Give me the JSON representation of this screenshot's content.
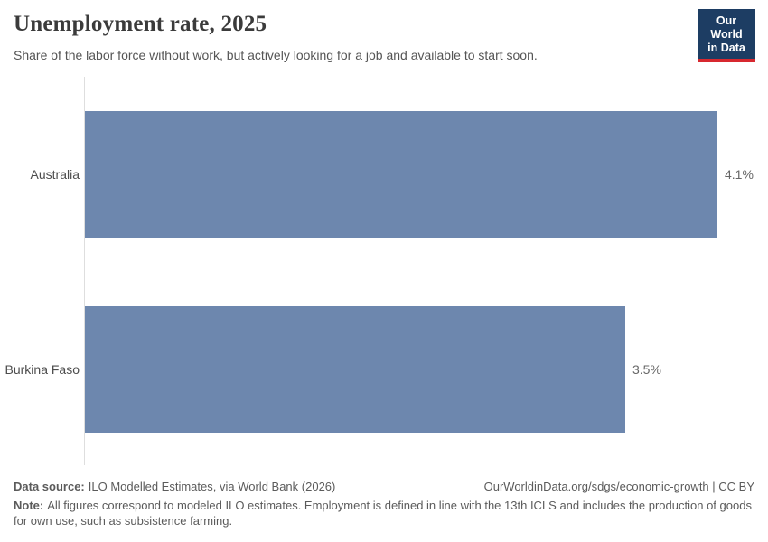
{
  "header": {
    "title": "Unemployment rate, 2025",
    "subtitle": "Share of the labor force without work, but actively looking for a job and available to start soon.",
    "logo": {
      "line1": "Our World",
      "line2": "in Data"
    }
  },
  "chart_data": {
    "type": "bar",
    "orientation": "horizontal",
    "title": "Unemployment rate, 2025",
    "categories": [
      "Australia",
      "Burkina Faso"
    ],
    "values": [
      4.1,
      3.5
    ],
    "value_labels": [
      "4.1%",
      "3.5%"
    ],
    "unit": "%",
    "xlabel": "",
    "ylabel": "",
    "xlim": [
      0,
      4.1
    ],
    "grid": false,
    "legend": "none"
  },
  "footer": {
    "data_source_label": "Data source:",
    "data_source_text": "ILO Modelled Estimates, via World Bank (2026)",
    "link_text": "OurWorldinData.org/sdgs/economic-growth | CC BY",
    "note_label": "Note:",
    "note_text": "All figures correspond to modeled ILO estimates. Employment is defined in line with the 13th ICLS and includes the production of goods for own use, such as subsistence farming."
  },
  "colors": {
    "bar": "#6d87ae",
    "axis_line": "#dedede",
    "logo_bg": "#1d3d63",
    "logo_stripe": "#d7282f"
  }
}
